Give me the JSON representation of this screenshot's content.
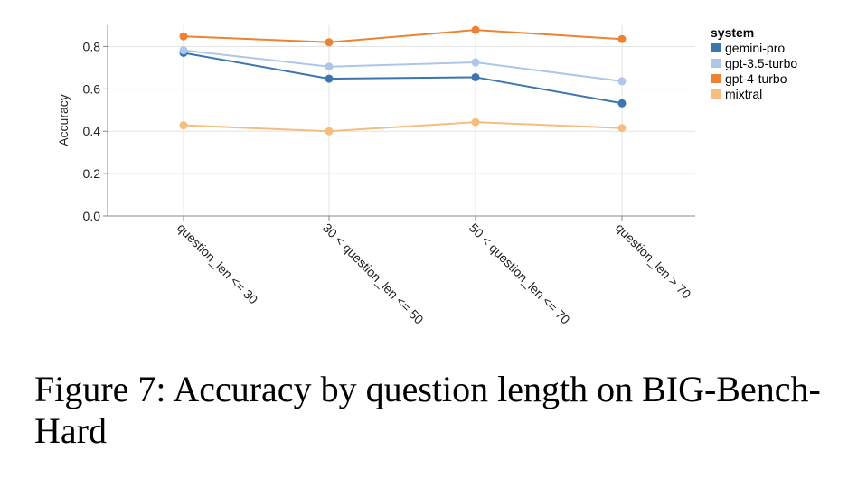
{
  "chart_data": {
    "type": "line",
    "categories": [
      "question_len <= 30",
      "30 < question_len <= 50",
      "50 < question_len <= 70",
      "question_len > 70"
    ],
    "series": [
      {
        "name": "gemini-pro",
        "color": "#3b76ae",
        "values": [
          0.77,
          0.648,
          0.655,
          0.532
        ]
      },
      {
        "name": "gpt-3.5-turbo",
        "color": "#aec7e8",
        "values": [
          0.782,
          0.705,
          0.725,
          0.636
        ]
      },
      {
        "name": "gpt-4-turbo",
        "color": "#ee8233",
        "values": [
          0.848,
          0.82,
          0.878,
          0.835
        ]
      },
      {
        "name": "mixtral",
        "color": "#f5bd7e",
        "values": [
          0.428,
          0.4,
          0.443,
          0.415
        ]
      }
    ],
    "ylabel": "Accuracy",
    "xlabel": "",
    "ylim": [
      0,
      0.9
    ],
    "yticks": [
      "0.0",
      "0.2",
      "0.4",
      "0.6",
      "0.8"
    ],
    "legend_title": "system",
    "legend_position": "right",
    "grid": true
  },
  "caption": {
    "text": "Figure 7: Accuracy by question length on BIG-Bench-Hard"
  }
}
